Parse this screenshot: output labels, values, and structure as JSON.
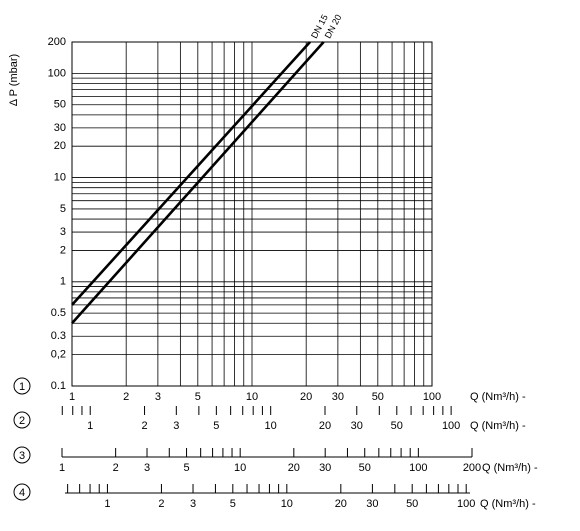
{
  "chart_data": {
    "type": "line",
    "y_label": "Δ P (mbar)",
    "x_log": true,
    "y_log": true,
    "grid": true,
    "xlim": [
      1,
      100
    ],
    "xticks": [
      1,
      2,
      3,
      5,
      10,
      20,
      30,
      50,
      100
    ],
    "x_minor_grid": [
      4,
      6,
      7,
      8,
      9,
      40,
      60,
      70,
      80,
      90
    ],
    "ylim": [
      0.1,
      200
    ],
    "yticks": [
      0.1,
      {
        "value": 0.2,
        "label": "0,2"
      },
      0.3,
      0.5,
      1,
      2,
      3,
      5,
      10,
      20,
      30,
      50,
      100,
      200
    ],
    "y_minor_grid": [
      0.4,
      0.6,
      0.7,
      0.8,
      0.9,
      4,
      6,
      7,
      8,
      9,
      40,
      60,
      70,
      80,
      90
    ],
    "x_axis_marker": "1",
    "x_label": "Q (Nm³/h) -",
    "series": [
      {
        "name": "DN 15",
        "color": "#000000",
        "x": [
          1,
          21
        ],
        "values": [
          0.6,
          200
        ]
      },
      {
        "name": "DN 20",
        "color": "#000000",
        "x": [
          1,
          25
        ],
        "values": [
          0.4,
          200
        ]
      }
    ],
    "scales": [
      {
        "marker": "2",
        "label": "Q (Nm³/h) -",
        "xlim": [
          0.68,
          112
        ],
        "baseline": false,
        "ticks": [
          1,
          2,
          3,
          5,
          10,
          20,
          30,
          50,
          100
        ],
        "minor_ticks": [
          0.7,
          0.8,
          0.9,
          4,
          6,
          7,
          8,
          9,
          40,
          60,
          70,
          80,
          90
        ]
      },
      {
        "marker": "3",
        "label": "Q (Nm³/h) -",
        "xlim": [
          1,
          200
        ],
        "baseline": true,
        "ticks": [
          1,
          2,
          3,
          5,
          10,
          20,
          30,
          50,
          100,
          200
        ],
        "minor_ticks": [
          4,
          6,
          7,
          8,
          9,
          40,
          60,
          70,
          80,
          90
        ]
      },
      {
        "marker": "4",
        "label": "Q (Nm³/h) -",
        "xlim": [
          0.58,
          105
        ],
        "baseline": true,
        "ticks": [
          1,
          2,
          3,
          5,
          10,
          20,
          30,
          50,
          100
        ],
        "minor_ticks": [
          0.6,
          0.7,
          0.8,
          0.9,
          4,
          6,
          7,
          8,
          9,
          40,
          60,
          70,
          80,
          90
        ]
      }
    ]
  }
}
